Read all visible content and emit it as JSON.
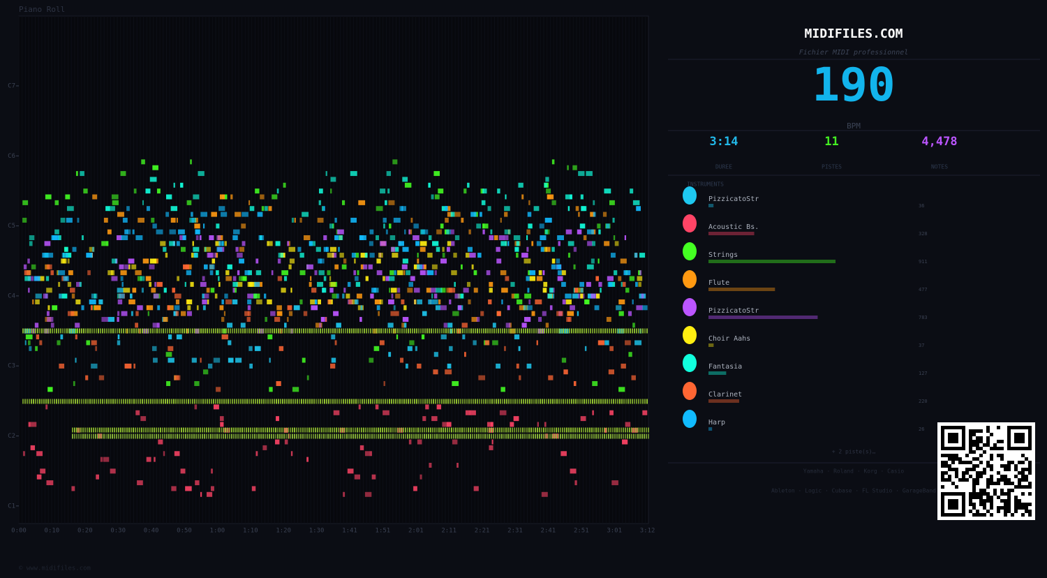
{
  "piano_roll": {
    "title": "Piano Roll",
    "y_labels": [
      "C7",
      "C6",
      "C5",
      "C4",
      "C3",
      "C2",
      "C1"
    ],
    "x_labels": [
      "0:00",
      "0:10",
      "0:20",
      "0:30",
      "0:40",
      "0:50",
      "1:00",
      "1:10",
      "1:20",
      "1:30",
      "1:41",
      "1:51",
      "2:01",
      "2:11",
      "2:21",
      "2:31",
      "2:41",
      "2:51",
      "3:01",
      "3:12"
    ]
  },
  "header": {
    "site": "MIDIFILES.COM",
    "subtitle": "Fichier MIDI professionnel",
    "bpm": 190,
    "bpm_label": "BPM"
  },
  "stats": [
    {
      "value": "3:14",
      "label": "DUREE",
      "color": "#22b8e8"
    },
    {
      "value": "11",
      "label": "PISTES",
      "color": "#44ee22"
    },
    {
      "value": "4,478",
      "label": "NOTES",
      "color": "#bb55ff"
    }
  ],
  "instruments": {
    "title": "INSTRUMENTS",
    "items": [
      {
        "name": "PizzicatoStr",
        "color": "#1ec8f0",
        "notes": 36
      },
      {
        "name": "Acoustic Bs.",
        "color": "#ff4466",
        "notes": 328
      },
      {
        "name": "Strings",
        "color": "#44ff22",
        "notes": 911
      },
      {
        "name": "Flute",
        "color": "#ff9911",
        "notes": 477
      },
      {
        "name": "PizzicatoStr",
        "color": "#bb55ff",
        "notes": 783
      },
      {
        "name": "Choir Aahs",
        "color": "#ffee11",
        "notes": 37
      },
      {
        "name": "Fantasia",
        "color": "#11ffdd",
        "notes": 127
      },
      {
        "name": "Clarinet",
        "color": "#ff6633",
        "notes": 220
      },
      {
        "name": "Harp",
        "color": "#11bbff",
        "notes": 26
      }
    ],
    "more": "+ 2 piste(s)…"
  },
  "brands": "Yamaha · Roland · Korg · Casio",
  "daws": "Ableton · Logic · Cubase · FL Studio · GarageBand",
  "footer": "© www.midifiles.com"
}
